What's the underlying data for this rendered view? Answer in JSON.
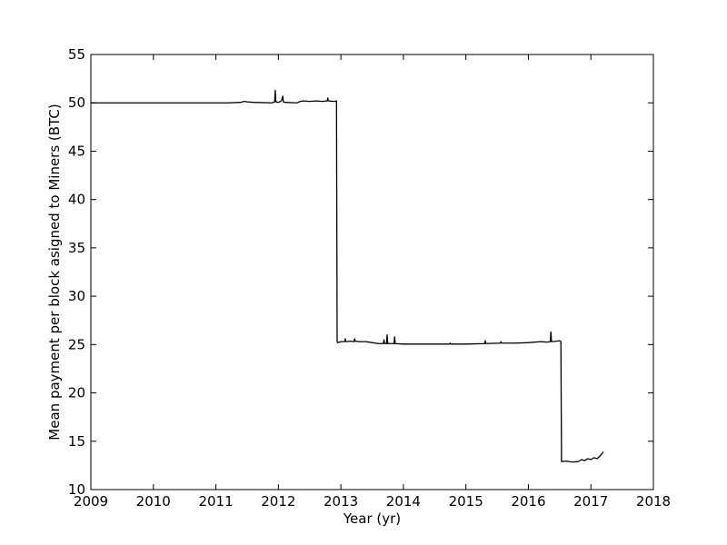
{
  "chart_data": {
    "type": "line",
    "title": "",
    "xlabel": "Year (yr)",
    "ylabel": "Mean payment per block asigned to Miners (BTC)",
    "xlim": [
      2009,
      2018
    ],
    "ylim": [
      10,
      55
    ],
    "xticks": [
      2009,
      2010,
      2011,
      2012,
      2013,
      2014,
      2015,
      2016,
      2017,
      2018
    ],
    "yticks": [
      10,
      15,
      20,
      25,
      30,
      35,
      40,
      45,
      50,
      55
    ],
    "grid": false,
    "legend": "none",
    "line_color": "#000000",
    "series": [
      {
        "x": [
          2009.0,
          2009.5,
          2010.0,
          2010.5,
          2011.0,
          2011.2,
          2011.4,
          2011.45,
          2011.5,
          2011.6,
          2011.9,
          2011.94,
          2011.95,
          2011.96,
          2012.0,
          2012.05,
          2012.07,
          2012.08,
          2012.1,
          2012.3,
          2012.35,
          2012.4,
          2012.5,
          2012.6,
          2012.7,
          2012.78,
          2012.79,
          2012.8,
          2012.9,
          2012.93,
          2012.94,
          2012.95,
          2013.0,
          2013.06,
          2013.07,
          2013.08,
          2013.15,
          2013.21,
          2013.22,
          2013.23,
          2013.3,
          2013.4,
          2013.5,
          2013.6,
          2013.68,
          2013.69,
          2013.7,
          2013.73,
          2013.74,
          2013.75,
          2013.85,
          2013.86,
          2013.87,
          2014.0,
          2014.3,
          2014.5,
          2014.74,
          2014.75,
          2014.76,
          2015.0,
          2015.3,
          2015.31,
          2015.32,
          2015.55,
          2015.56,
          2015.57,
          2015.8,
          2016.0,
          2016.2,
          2016.3,
          2016.35,
          2016.36,
          2016.37,
          2016.45,
          2016.5,
          2016.52,
          2016.53,
          2016.54,
          2016.6,
          2016.7,
          2016.8,
          2016.85,
          2016.9,
          2016.95,
          2017.0,
          2017.05,
          2017.1,
          2017.15,
          2017.2
        ],
        "y": [
          50.0,
          50.0,
          50.0,
          50.0,
          50.0,
          50.0,
          50.05,
          50.15,
          50.1,
          50.05,
          50.0,
          50.1,
          51.3,
          50.1,
          50.05,
          50.2,
          50.7,
          50.1,
          50.05,
          50.0,
          50.15,
          50.2,
          50.15,
          50.2,
          50.15,
          50.2,
          50.5,
          50.2,
          50.15,
          50.2,
          25.3,
          25.2,
          25.3,
          25.3,
          25.6,
          25.3,
          25.35,
          25.3,
          25.6,
          25.35,
          25.3,
          25.3,
          25.2,
          25.1,
          25.1,
          25.5,
          25.1,
          25.1,
          26.0,
          25.1,
          25.1,
          25.8,
          25.1,
          25.05,
          25.05,
          25.05,
          25.05,
          25.15,
          25.05,
          25.05,
          25.1,
          25.4,
          25.1,
          25.15,
          25.3,
          25.15,
          25.15,
          25.2,
          25.3,
          25.25,
          25.3,
          26.3,
          25.3,
          25.35,
          25.4,
          25.3,
          12.9,
          12.9,
          12.95,
          12.85,
          12.9,
          13.1,
          13.0,
          13.2,
          13.1,
          13.3,
          13.2,
          13.5,
          13.9
        ]
      }
    ]
  }
}
